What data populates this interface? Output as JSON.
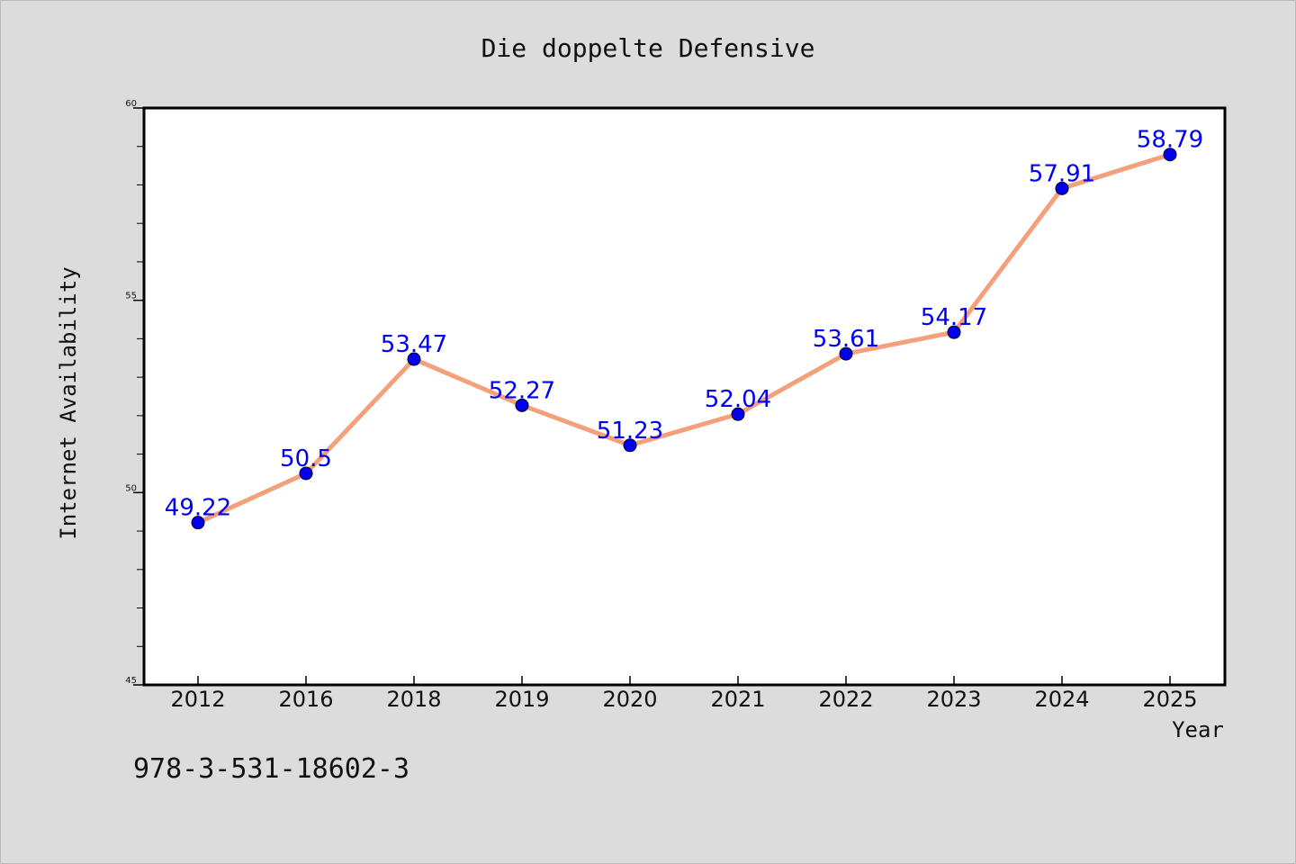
{
  "chart_data": {
    "type": "line",
    "title": "Die doppelte Defensive",
    "xlabel": "Year",
    "ylabel": "Internet Availability",
    "categories": [
      "2012",
      "2016",
      "2018",
      "2019",
      "2020",
      "2021",
      "2022",
      "2023",
      "2024",
      "2025"
    ],
    "series": [
      {
        "values": [
          49.22,
          50.5,
          53.47,
          52.27,
          51.23,
          52.04,
          53.61,
          54.17,
          57.91,
          58.79
        ],
        "data_labels": [
          "49.22",
          "50.5",
          "53.47",
          "52.27",
          "51.23",
          "52.04",
          "53.61",
          "54.17",
          "57.91",
          "58.79"
        ]
      }
    ],
    "ylim": [
      45,
      60
    ],
    "yticks": [
      "45",
      "50",
      "55",
      "60"
    ],
    "grid": false,
    "legend": "none",
    "colors": {
      "line": "#f4a07a",
      "marker": "#0000ee",
      "data_label": "#0000ee",
      "plot_background": "#ffffff",
      "page_background": "#dcdcdc"
    }
  },
  "footer_text": "978-3-531-18602-3"
}
